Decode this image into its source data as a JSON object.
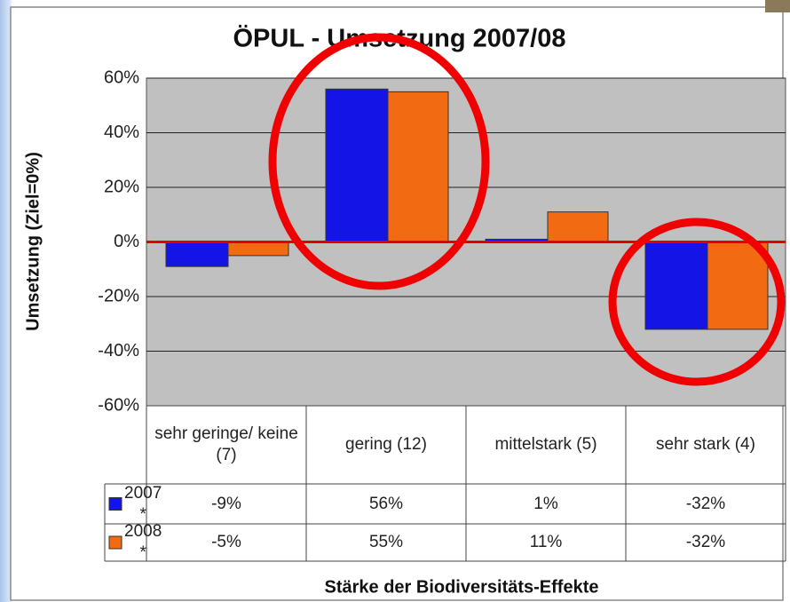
{
  "chart_data": {
    "type": "bar",
    "title": "ÖPUL - Umsetzung 2007/08",
    "y_label": "Umsetzung (Ziel=0%)",
    "x_label": "Stärke der Biodiversitäts-Effekte",
    "categories": [
      "sehr geringe/ keine (7)",
      "gering (12)",
      "mittelstark (5)",
      "sehr stark (4)"
    ],
    "series": [
      {
        "name": "2007 *",
        "color": "#1414e6",
        "values": [
          -9,
          56,
          1,
          -32
        ],
        "value_labels": [
          "-9%",
          "56%",
          "1%",
          "-32%"
        ]
      },
      {
        "name": "2008 *",
        "color": "#f26b12",
        "values": [
          -5,
          55,
          11,
          -32
        ],
        "value_labels": [
          "-5%",
          "55%",
          "11%",
          "-32%"
        ]
      }
    ],
    "ylim": [
      -60,
      60
    ],
    "yticks": [
      {
        "value": -60,
        "label": "-60%"
      },
      {
        "value": -40,
        "label": "-40%"
      },
      {
        "value": -20,
        "label": "-20%"
      },
      {
        "value": 0,
        "label": "0%"
      },
      {
        "value": 20,
        "label": "20%"
      },
      {
        "value": 40,
        "label": "40%"
      },
      {
        "value": 60,
        "label": "60%"
      }
    ],
    "grid": true
  }
}
